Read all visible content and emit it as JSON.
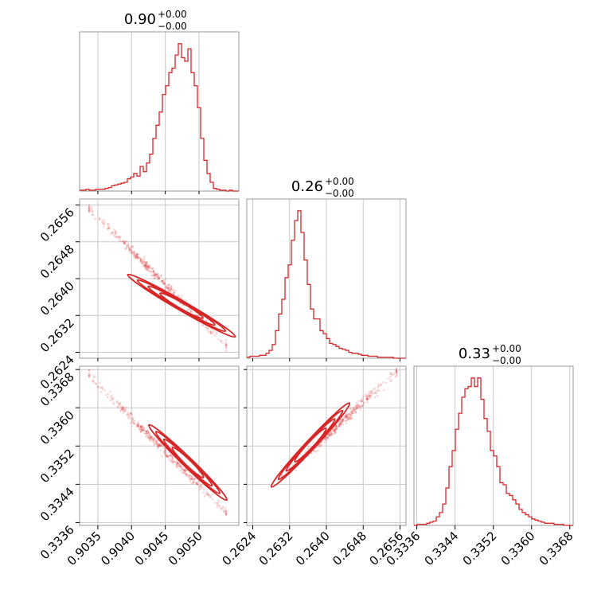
{
  "figure": {
    "colors": {
      "series": "#d62728",
      "grid": "#c8c8c8",
      "frame": "#9a9a9a"
    }
  },
  "chart_data": {
    "type": "corner",
    "parameters": [
      {
        "range": [
          0.90323,
          0.90559
        ],
        "ticks": [
          0.9035,
          0.904,
          0.9045,
          0.905
        ],
        "tick_labels": [
          "0.9035",
          "0.9040",
          "0.9045",
          "0.9050"
        ],
        "title_value": "0.90",
        "title_plus": "+0.00",
        "title_minus": "−0.00"
      },
      {
        "range": [
          0.26227,
          0.26573
        ],
        "ticks": [
          0.2624,
          0.2632,
          0.264,
          0.2648,
          0.2656
        ],
        "tick_labels": [
          "0.2624",
          "0.2632",
          "0.2640",
          "0.2648",
          "0.2656"
        ],
        "title_value": "0.26",
        "title_plus": "+0.00",
        "title_minus": "−0.00"
      },
      {
        "range": [
          0.33354,
          0.33687
        ],
        "ticks": [
          0.3336,
          0.3344,
          0.3352,
          0.336,
          0.3368
        ],
        "tick_labels": [
          "0.3336",
          "0.3344",
          "0.3352",
          "0.3360",
          "0.3368"
        ],
        "title_value": "0.33",
        "title_plus": "+0.00",
        "title_minus": "−0.00"
      }
    ],
    "histograms": [
      {
        "param": 0,
        "bin_start": 0.90323,
        "bin_width": 4.72e-05,
        "counts": [
          1,
          1,
          2,
          1,
          1,
          2,
          2,
          2,
          3,
          4,
          6,
          7,
          8,
          9,
          10,
          14,
          16,
          20,
          17,
          28,
          22,
          32,
          42,
          60,
          75,
          90,
          110,
          120,
          135,
          140,
          155,
          168,
          152,
          148,
          162,
          135,
          120,
          95,
          60,
          35,
          20,
          10,
          3,
          2,
          1,
          1,
          0,
          1,
          0,
          0
        ]
      },
      {
        "param": 1,
        "bin_start": 0.26227,
        "bin_width": 6.92e-05,
        "counts": [
          1,
          2,
          2,
          2,
          3,
          3,
          5,
          8,
          14,
          28,
          45,
          60,
          82,
          95,
          120,
          140,
          150,
          128,
          100,
          75,
          50,
          40,
          40,
          28,
          25,
          20,
          15,
          14,
          12,
          10,
          9,
          8,
          6,
          5,
          5,
          4,
          3,
          3,
          2,
          2,
          2,
          1,
          1,
          1,
          1,
          1,
          0,
          0,
          0,
          0
        ]
      },
      {
        "param": 2,
        "bin_start": 0.33354,
        "bin_width": 6.66e-05,
        "counts": [
          0,
          1,
          1,
          1,
          2,
          3,
          4,
          8,
          12,
          20,
          35,
          55,
          70,
          90,
          105,
          120,
          128,
          130,
          138,
          130,
          138,
          118,
          100,
          88,
          70,
          65,
          55,
          40,
          38,
          30,
          28,
          24,
          20,
          15,
          12,
          10,
          8,
          6,
          5,
          4,
          3,
          2,
          2,
          2,
          1,
          1,
          1,
          0,
          0,
          0
        ]
      }
    ],
    "pairs": [
      {
        "x": 0,
        "y": 1,
        "direction": "anti-correlated"
      },
      {
        "x": 0,
        "y": 2,
        "direction": "anti-correlated"
      },
      {
        "x": 1,
        "y": 2,
        "direction": "correlated"
      }
    ],
    "grid": true
  }
}
